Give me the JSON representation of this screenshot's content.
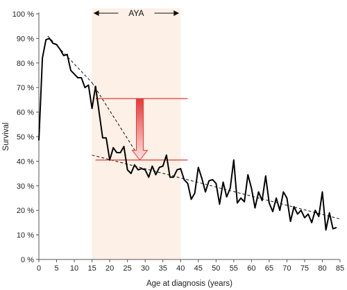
{
  "chart_data": {
    "type": "line",
    "xlabel": "Age at diagnosis (years)",
    "ylabel": "Survival",
    "xlim": [
      0,
      85
    ],
    "ylim": [
      0,
      100
    ],
    "x_ticks": [
      0,
      5,
      10,
      15,
      20,
      25,
      30,
      35,
      40,
      45,
      50,
      55,
      60,
      65,
      70,
      75,
      80,
      85
    ],
    "y_ticks": [
      0,
      10,
      20,
      30,
      40,
      50,
      60,
      70,
      80,
      90,
      100
    ],
    "y_tick_labels": [
      "0 %",
      "10 %",
      "20 %",
      "30 %",
      "40 %",
      "50 %",
      "60 %",
      "70 %",
      "80 %",
      "90 %",
      "100 %"
    ],
    "grid": false,
    "highlight_band": {
      "label": "AYA",
      "x_range": [
        15,
        40
      ],
      "color": "#fdf0e6"
    },
    "series": [
      {
        "x": [
          0,
          1,
          2,
          3,
          4,
          5,
          6,
          7,
          8,
          9,
          10,
          11,
          12,
          13,
          14,
          15,
          16,
          17,
          18,
          19,
          20,
          21,
          22,
          23,
          24,
          25,
          26,
          27,
          28,
          29,
          30,
          31,
          32,
          33,
          34,
          35,
          36,
          37,
          38,
          39,
          40,
          41,
          42,
          43,
          44,
          45,
          46,
          47,
          48,
          49,
          50,
          51,
          52,
          53,
          54,
          55,
          56,
          57,
          58,
          59,
          60,
          61,
          62,
          63,
          64,
          65,
          66,
          67,
          68,
          69,
          70,
          71,
          72,
          73,
          74,
          75,
          76,
          77,
          78,
          79,
          80,
          81,
          82,
          83,
          84
        ],
        "values": [
          48.5,
          82,
          89.5,
          90,
          88,
          87.5,
          85.5,
          83,
          83.5,
          77,
          75.5,
          74,
          74,
          70,
          71,
          61.5,
          70.5,
          60,
          49.5,
          49.5,
          40.5,
          45.5,
          43.5,
          43.5,
          46,
          36.5,
          35,
          38.5,
          36.5,
          37,
          36.5,
          33.5,
          38,
          34.5,
          37.5,
          38,
          42.5,
          33.5,
          33.5,
          36.5,
          37,
          32.5,
          31,
          24.5,
          27,
          37.5,
          33,
          27.5,
          32,
          32.5,
          31,
          22.5,
          31.5,
          25.5,
          29,
          40.5,
          23,
          25,
          23.5,
          34.5,
          29,
          21,
          27.5,
          24,
          34,
          23,
          19.5,
          25,
          20,
          27.5,
          25,
          15.5,
          21.5,
          18.5,
          20,
          17,
          18.5,
          15,
          20,
          17.5,
          27.5,
          12,
          19,
          12.5,
          13
        ]
      }
    ],
    "trend_lines": [
      {
        "x": [
          2.5,
          15
        ],
        "values": [
          91,
          72
        ]
      },
      {
        "x": [
          15,
          27.5
        ],
        "values": [
          72,
          43.5
        ]
      },
      {
        "x": [
          15,
          85
        ],
        "values": [
          42.5,
          16.5
        ]
      }
    ],
    "reference_lines": [
      {
        "x": [
          16,
          42
        ],
        "values": [
          65.5,
          65.5
        ],
        "color": "#e53935"
      },
      {
        "x": [
          16,
          42
        ],
        "values": [
          40.5,
          40.5
        ],
        "color": "#e53935"
      }
    ],
    "drop_arrow": {
      "x": 28.5,
      "from": 65.5,
      "to": 40.5
    }
  }
}
